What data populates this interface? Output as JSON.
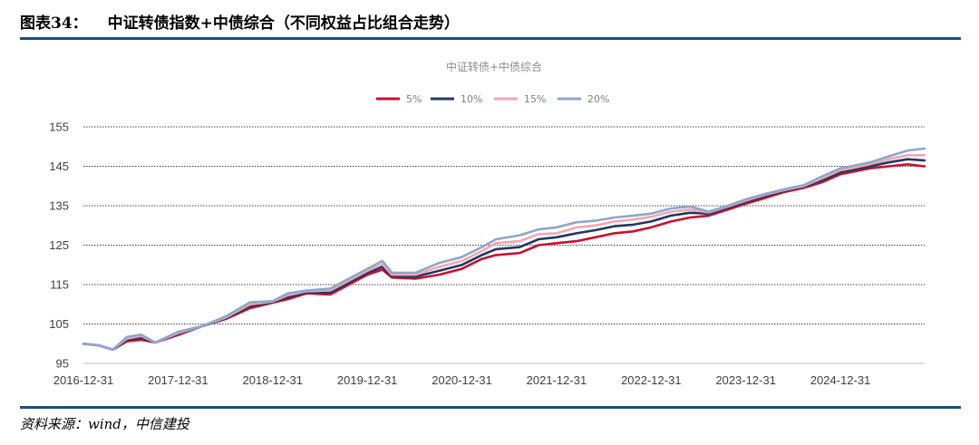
{
  "figure": {
    "number": "图表34：",
    "title": "中证转债指数+中债综合（不同权益占比组合走势）",
    "source": "资料来源：wind，中信建投"
  },
  "chart_data": {
    "type": "line",
    "title": "中证转债+中债综合",
    "ylim": [
      95,
      155
    ],
    "yticks": [
      95,
      105,
      115,
      125,
      135,
      145,
      155
    ],
    "xlim": [
      2016.99,
      2025.88
    ],
    "xticks": [
      "2016-12-31",
      "2017-12-31",
      "2018-12-31",
      "2019-12-31",
      "2020-12-31",
      "2021-12-31",
      "2022-12-31",
      "2023-12-31",
      "2024-12-31"
    ],
    "xtick_positions": [
      2016.99,
      2017.99,
      2018.99,
      2019.99,
      2020.99,
      2021.99,
      2022.99,
      2023.99,
      2024.99
    ],
    "grid": "horizontal",
    "legend_position": "top-center",
    "series": [
      {
        "name": "5%",
        "color": "#c8102e",
        "x": [
          2016.99,
          2017.15,
          2017.3,
          2017.45,
          2017.6,
          2017.75,
          2017.99,
          2018.25,
          2018.5,
          2018.75,
          2018.99,
          2019.15,
          2019.35,
          2019.6,
          2019.99,
          2020.15,
          2020.25,
          2020.5,
          2020.75,
          2020.99,
          2021.2,
          2021.35,
          2021.6,
          2021.8,
          2021.99,
          2022.2,
          2022.4,
          2022.6,
          2022.8,
          2022.99,
          2023.2,
          2023.4,
          2023.6,
          2023.8,
          2023.99,
          2024.2,
          2024.4,
          2024.6,
          2024.8,
          2024.99,
          2025.1,
          2025.3,
          2025.5,
          2025.7,
          2025.88
        ],
        "y": [
          100.0,
          99.6,
          98.5,
          100.6,
          101.0,
          100.3,
          102.2,
          104.5,
          106.3,
          109.0,
          110.4,
          111.3,
          112.8,
          112.5,
          117.5,
          118.8,
          116.8,
          116.5,
          117.5,
          119.0,
          121.5,
          122.5,
          123.0,
          125.0,
          125.5,
          126.0,
          127.0,
          128.0,
          128.5,
          129.5,
          131.0,
          132.0,
          132.5,
          134.0,
          135.5,
          137.0,
          138.5,
          139.5,
          141.0,
          143.0,
          143.5,
          144.5,
          145.0,
          145.5,
          145.0
        ]
      },
      {
        "name": "10%",
        "color": "#1f3864",
        "x": [
          2016.99,
          2017.15,
          2017.3,
          2017.45,
          2017.6,
          2017.75,
          2017.99,
          2018.25,
          2018.5,
          2018.75,
          2018.99,
          2019.15,
          2019.35,
          2019.6,
          2019.99,
          2020.15,
          2020.25,
          2020.5,
          2020.75,
          2020.99,
          2021.2,
          2021.35,
          2021.6,
          2021.8,
          2021.99,
          2022.2,
          2022.4,
          2022.6,
          2022.8,
          2022.99,
          2023.2,
          2023.4,
          2023.6,
          2023.8,
          2023.99,
          2024.2,
          2024.4,
          2024.6,
          2024.8,
          2024.99,
          2025.1,
          2025.3,
          2025.5,
          2025.7,
          2025.88
        ],
        "y": [
          100.0,
          99.6,
          98.5,
          101.0,
          101.5,
          100.3,
          102.5,
          104.5,
          106.5,
          109.5,
          110.6,
          111.8,
          113.0,
          113.0,
          118.0,
          119.5,
          117.2,
          117.0,
          118.5,
          120.0,
          122.5,
          124.0,
          124.5,
          126.5,
          127.0,
          128.0,
          128.8,
          129.8,
          130.2,
          131.0,
          132.5,
          133.2,
          133.0,
          134.5,
          136.0,
          137.5,
          138.8,
          139.8,
          141.5,
          143.5,
          144.0,
          145.0,
          146.0,
          146.8,
          146.5
        ]
      },
      {
        "name": "15%",
        "color": "#f4a6b0",
        "x": [
          2016.99,
          2017.15,
          2017.3,
          2017.45,
          2017.6,
          2017.75,
          2017.99,
          2018.25,
          2018.5,
          2018.75,
          2018.99,
          2019.15,
          2019.35,
          2019.6,
          2019.99,
          2020.15,
          2020.25,
          2020.5,
          2020.75,
          2020.99,
          2021.2,
          2021.35,
          2021.6,
          2021.8,
          2021.99,
          2022.2,
          2022.4,
          2022.6,
          2022.8,
          2022.99,
          2023.2,
          2023.4,
          2023.6,
          2023.8,
          2023.99,
          2024.2,
          2024.4,
          2024.6,
          2024.8,
          2024.99,
          2025.1,
          2025.3,
          2025.5,
          2025.7,
          2025.88
        ],
        "y": [
          100.0,
          99.6,
          98.5,
          101.3,
          102.0,
          100.3,
          102.7,
          104.5,
          106.7,
          110.0,
          110.7,
          112.3,
          113.3,
          113.5,
          118.5,
          120.2,
          117.5,
          117.5,
          119.5,
          121.0,
          123.5,
          125.5,
          126.0,
          127.8,
          128.0,
          129.5,
          130.0,
          131.0,
          131.5,
          132.2,
          133.5,
          134.0,
          133.3,
          134.8,
          136.3,
          137.8,
          139.0,
          140.0,
          142.0,
          144.0,
          144.5,
          145.5,
          146.8,
          147.8,
          147.8
        ]
      },
      {
        "name": "20%",
        "color": "#8ea6c8",
        "x": [
          2016.99,
          2017.15,
          2017.3,
          2017.45,
          2017.6,
          2017.75,
          2017.99,
          2018.25,
          2018.5,
          2018.75,
          2018.99,
          2019.15,
          2019.35,
          2019.6,
          2019.99,
          2020.15,
          2020.25,
          2020.5,
          2020.75,
          2020.99,
          2021.2,
          2021.35,
          2021.6,
          2021.8,
          2021.99,
          2022.2,
          2022.4,
          2022.6,
          2022.8,
          2022.99,
          2023.2,
          2023.4,
          2023.6,
          2023.8,
          2023.99,
          2024.2,
          2024.4,
          2024.6,
          2024.8,
          2024.99,
          2025.1,
          2025.3,
          2025.5,
          2025.7,
          2025.88
        ],
        "y": [
          100.0,
          99.6,
          98.5,
          101.7,
          102.3,
          100.3,
          103.0,
          104.5,
          107.0,
          110.5,
          110.8,
          112.8,
          113.5,
          114.0,
          119.0,
          121.0,
          118.0,
          118.0,
          120.5,
          122.0,
          124.5,
          126.5,
          127.5,
          129.0,
          129.5,
          130.8,
          131.2,
          132.0,
          132.5,
          133.0,
          134.3,
          134.8,
          133.5,
          135.0,
          136.6,
          138.0,
          139.2,
          140.2,
          142.5,
          144.5,
          145.0,
          146.0,
          147.5,
          149.0,
          149.5
        ]
      }
    ]
  }
}
